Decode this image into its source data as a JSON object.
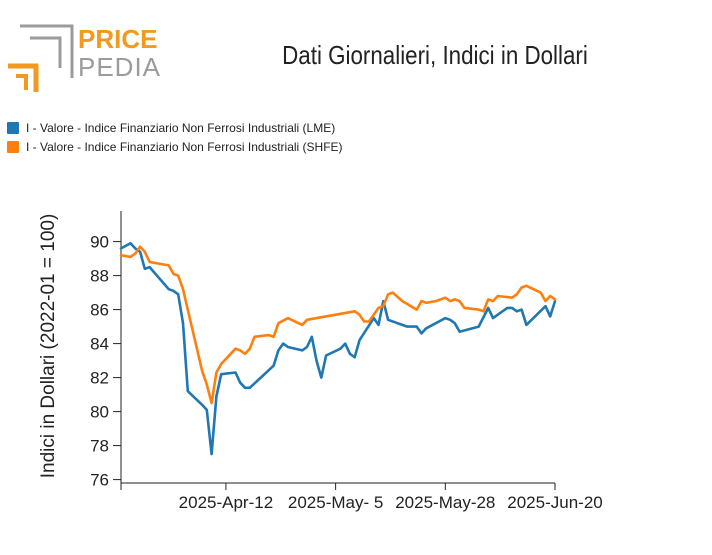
{
  "logo": {
    "line1": "PRICE",
    "line2": "PEDIA"
  },
  "colors": {
    "lme": "#1f77b4",
    "shfe": "#ff7f0e",
    "logo_orange": "#f29a1f",
    "logo_gray": "#9b9b9b"
  },
  "chart_data": {
    "type": "line",
    "title": "Dati Giornalieri, Indici in Dollari",
    "ylabel": "Indici in Dollari (2022-01 = 100)",
    "xlabel": "",
    "ylim": [
      75.8,
      91.8
    ],
    "yticks": [
      76,
      78,
      80,
      82,
      84,
      86,
      88,
      90
    ],
    "xlim": [
      "2025-03-21",
      "2025-06-20"
    ],
    "xticks": [
      {
        "label": "2025-Apr-12",
        "date": "2025-04-12"
      },
      {
        "label": "2025-May- 5",
        "date": "2025-05-05"
      },
      {
        "label": "2025-May-28",
        "date": "2025-05-28"
      },
      {
        "label": "2025-Jun-20",
        "date": "2025-06-20"
      }
    ],
    "legend_position": "top-left",
    "series": [
      {
        "name": "I - Valore - Indice Finanziario Non Ferrosi Industriali (LME)",
        "color": "#1f77b4",
        "points": [
          [
            "2025-03-21",
            89.6
          ],
          [
            "2025-03-23",
            89.9
          ],
          [
            "2025-03-24",
            89.6
          ],
          [
            "2025-03-25",
            89.4
          ],
          [
            "2025-03-26",
            88.4
          ],
          [
            "2025-03-27",
            88.5
          ],
          [
            "2025-03-31",
            87.2
          ],
          [
            "2025-04-01",
            87.1
          ],
          [
            "2025-04-02",
            86.9
          ],
          [
            "2025-04-03",
            85.2
          ],
          [
            "2025-04-04",
            81.2
          ],
          [
            "2025-04-07",
            80.4
          ],
          [
            "2025-04-08",
            80.1
          ],
          [
            "2025-04-09",
            77.5
          ],
          [
            "2025-04-10",
            80.9
          ],
          [
            "2025-04-11",
            82.2
          ],
          [
            "2025-04-14",
            82.3
          ],
          [
            "2025-04-15",
            81.7
          ],
          [
            "2025-04-16",
            81.4
          ],
          [
            "2025-04-17",
            81.4
          ],
          [
            "2025-04-22",
            82.7
          ],
          [
            "2025-04-23",
            83.6
          ],
          [
            "2025-04-24",
            84.0
          ],
          [
            "2025-04-25",
            83.8
          ],
          [
            "2025-04-28",
            83.6
          ],
          [
            "2025-04-29",
            83.8
          ],
          [
            "2025-04-30",
            84.4
          ],
          [
            "2025-05-01",
            83.0
          ],
          [
            "2025-05-02",
            82.0
          ],
          [
            "2025-05-03",
            83.3
          ],
          [
            "2025-05-06",
            83.7
          ],
          [
            "2025-05-07",
            84.0
          ],
          [
            "2025-05-08",
            83.4
          ],
          [
            "2025-05-09",
            83.2
          ],
          [
            "2025-05-10",
            84.2
          ],
          [
            "2025-05-13",
            85.5
          ],
          [
            "2025-05-14",
            85.1
          ],
          [
            "2025-05-15",
            86.5
          ],
          [
            "2025-05-16",
            85.4
          ],
          [
            "2025-05-20",
            85.0
          ],
          [
            "2025-05-22",
            85.0
          ],
          [
            "2025-05-23",
            84.6
          ],
          [
            "2025-05-24",
            84.9
          ],
          [
            "2025-05-28",
            85.5
          ],
          [
            "2025-05-29",
            85.4
          ],
          [
            "2025-05-30",
            85.2
          ],
          [
            "2025-05-31",
            84.7
          ],
          [
            "2025-06-04",
            85.0
          ],
          [
            "2025-06-06",
            86.1
          ],
          [
            "2025-06-07",
            85.5
          ],
          [
            "2025-06-10",
            86.1
          ],
          [
            "2025-06-11",
            86.1
          ],
          [
            "2025-06-12",
            85.9
          ],
          [
            "2025-06-13",
            86.0
          ],
          [
            "2025-06-14",
            85.1
          ],
          [
            "2025-06-18",
            86.2
          ],
          [
            "2025-06-19",
            85.6
          ],
          [
            "2025-06-20",
            86.5
          ]
        ]
      },
      {
        "name": "I - Valore - Indice Finanziario Non Ferrosi Industriali (SHFE)",
        "color": "#ff7f0e",
        "points": [
          [
            "2025-03-21",
            89.2
          ],
          [
            "2025-03-23",
            89.1
          ],
          [
            "2025-03-24",
            89.3
          ],
          [
            "2025-03-25",
            89.7
          ],
          [
            "2025-03-26",
            89.4
          ],
          [
            "2025-03-27",
            88.8
          ],
          [
            "2025-03-31",
            88.6
          ],
          [
            "2025-04-01",
            88.1
          ],
          [
            "2025-04-02",
            88.0
          ],
          [
            "2025-04-03",
            87.2
          ],
          [
            "2025-04-07",
            82.4
          ],
          [
            "2025-04-08",
            81.6
          ],
          [
            "2025-04-09",
            80.5
          ],
          [
            "2025-04-10",
            82.3
          ],
          [
            "2025-04-11",
            82.8
          ],
          [
            "2025-04-14",
            83.7
          ],
          [
            "2025-04-15",
            83.6
          ],
          [
            "2025-04-16",
            83.4
          ],
          [
            "2025-04-17",
            83.7
          ],
          [
            "2025-04-18",
            84.4
          ],
          [
            "2025-04-21",
            84.5
          ],
          [
            "2025-04-22",
            84.4
          ],
          [
            "2025-04-23",
            85.2
          ],
          [
            "2025-04-25",
            85.5
          ],
          [
            "2025-04-28",
            85.1
          ],
          [
            "2025-04-29",
            85.4
          ],
          [
            "2025-05-09",
            85.9
          ],
          [
            "2025-05-10",
            85.7
          ],
          [
            "2025-05-11",
            85.3
          ],
          [
            "2025-05-12",
            85.3
          ],
          [
            "2025-05-14",
            86.1
          ],
          [
            "2025-05-15",
            86.2
          ],
          [
            "2025-05-16",
            86.9
          ],
          [
            "2025-05-17",
            87.0
          ],
          [
            "2025-05-19",
            86.5
          ],
          [
            "2025-05-22",
            86.0
          ],
          [
            "2025-05-23",
            86.5
          ],
          [
            "2025-05-24",
            86.4
          ],
          [
            "2025-05-26",
            86.5
          ],
          [
            "2025-05-28",
            86.7
          ],
          [
            "2025-05-29",
            86.5
          ],
          [
            "2025-05-30",
            86.6
          ],
          [
            "2025-05-31",
            86.5
          ],
          [
            "2025-06-01",
            86.1
          ],
          [
            "2025-06-04",
            86.0
          ],
          [
            "2025-06-05",
            85.9
          ],
          [
            "2025-06-06",
            86.6
          ],
          [
            "2025-06-07",
            86.5
          ],
          [
            "2025-06-08",
            86.8
          ],
          [
            "2025-06-11",
            86.7
          ],
          [
            "2025-06-12",
            86.9
          ],
          [
            "2025-06-13",
            87.3
          ],
          [
            "2025-06-14",
            87.4
          ],
          [
            "2025-06-17",
            87.0
          ],
          [
            "2025-06-18",
            86.5
          ],
          [
            "2025-06-19",
            86.8
          ],
          [
            "2025-06-20",
            86.6
          ]
        ]
      }
    ]
  }
}
